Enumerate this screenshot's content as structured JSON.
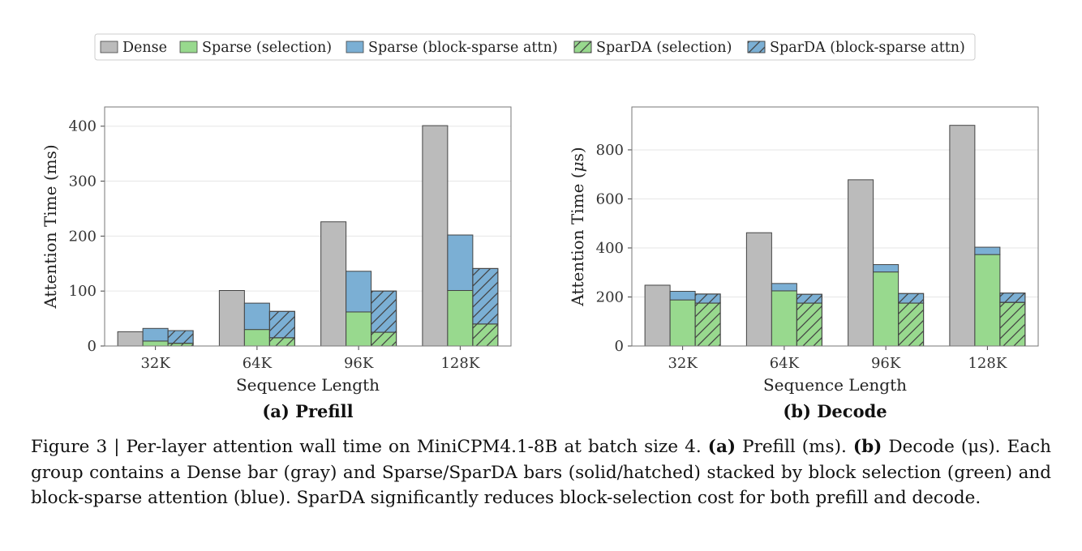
{
  "legend": {
    "entries": [
      {
        "name": "Dense",
        "color": "#bbbbbb",
        "hatch": false
      },
      {
        "name": "Sparse (selection)",
        "color": "#98d98e",
        "hatch": false
      },
      {
        "name": "Sparse (block-sparse attn)",
        "color": "#7bafd4",
        "hatch": false
      },
      {
        "name": "SparDA (selection)",
        "color": "#98d98e",
        "hatch": true
      },
      {
        "name": "SparDA (block-sparse attn)",
        "color": "#7bafd4",
        "hatch": true
      }
    ],
    "placement": "top-center"
  },
  "colors": {
    "dense": "#bbbbbb",
    "selection": "#98d98e",
    "attn": "#7bafd4",
    "edge": "#444444",
    "grid": "#e6e6e6"
  },
  "chart_data": [
    {
      "type": "bar",
      "panel_label": "(a)",
      "title": "Prefill",
      "xlabel": "Sequence Length",
      "ylabel": "Attention Time (ms)",
      "ylabel_unit_italic": false,
      "categories": [
        "32K",
        "64K",
        "96K",
        "128K"
      ],
      "ylim": [
        0,
        435
      ],
      "yticks": [
        0,
        100,
        200,
        300,
        400
      ],
      "grid": true,
      "series": [
        {
          "name": "Dense",
          "values": [
            26,
            101,
            226,
            401
          ]
        },
        {
          "name": "Sparse (selection)",
          "values": [
            9,
            30,
            62,
            101
          ]
        },
        {
          "name": "Sparse (block-sparse attn)",
          "values": [
            23,
            48,
            74,
            101
          ]
        },
        {
          "name": "SparDA (selection)",
          "values": [
            5,
            15,
            25,
            40
          ]
        },
        {
          "name": "SparDA (block-sparse attn)",
          "values": [
            23,
            48,
            75,
            101
          ]
        }
      ]
    },
    {
      "type": "bar",
      "panel_label": "(b)",
      "title": "Decode",
      "xlabel": "Sequence Length",
      "ylabel": "Attention Time (μs)",
      "ylabel_unit_italic": true,
      "categories": [
        "32K",
        "64K",
        "96K",
        "128K"
      ],
      "ylim": [
        0,
        975
      ],
      "yticks": [
        0,
        200,
        400,
        600,
        800
      ],
      "grid": true,
      "series": [
        {
          "name": "Dense",
          "values": [
            248,
            462,
            678,
            900
          ]
        },
        {
          "name": "Sparse (selection)",
          "values": [
            188,
            225,
            302,
            373
          ]
        },
        {
          "name": "Sparse (block-sparse attn)",
          "values": [
            35,
            30,
            30,
            30
          ]
        },
        {
          "name": "SparDA (selection)",
          "values": [
            175,
            175,
            175,
            178
          ]
        },
        {
          "name": "SparDA (block-sparse attn)",
          "values": [
            37,
            36,
            39,
            38
          ]
        }
      ]
    }
  ],
  "caption": {
    "label": "Figure 3 | Per-layer attention wall time on MiniCPM4.1-8B at batch size 4.",
    "a_label": "(a)",
    "a_text": "Prefill (ms).",
    "b_label": "(b)",
    "b_text": "Decode (μs).",
    "body": "Each group contains a Dense bar (gray) and Sparse/SparDA bars (solid/hatched) stacked by block selection (green) and block-sparse attention (blue). SparDA significantly reduces block-selection cost for both prefill and decode."
  }
}
